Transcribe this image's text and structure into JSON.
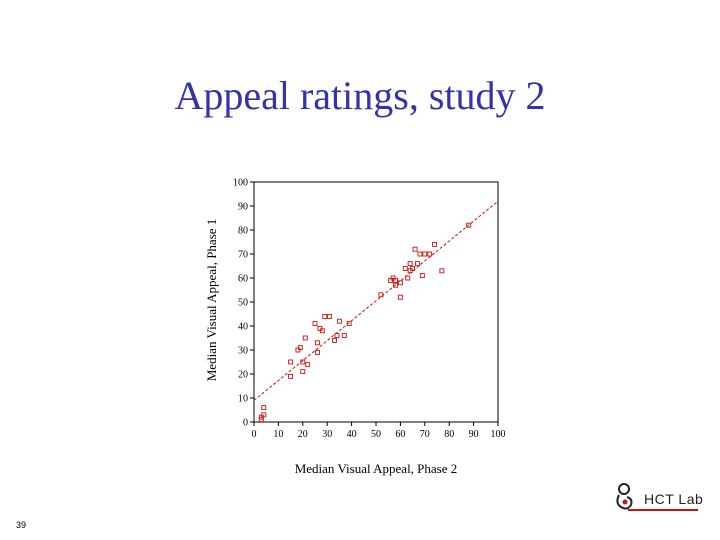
{
  "slide": {
    "title": "Appeal ratings, study 2",
    "page_number": "39",
    "logo_text": "HCT  Lab"
  },
  "chart_data": {
    "type": "scatter",
    "title": "",
    "xlabel": "Median Visual Appeal, Phase 2",
    "ylabel": "Median Visual Appeal, Phase 1",
    "xlim": [
      0,
      100
    ],
    "ylim": [
      0,
      100
    ],
    "xticks": [
      0,
      10,
      20,
      30,
      40,
      50,
      60,
      70,
      80,
      90,
      100
    ],
    "yticks": [
      0,
      10,
      20,
      30,
      40,
      50,
      60,
      70,
      80,
      90,
      100
    ],
    "grid": false,
    "point_color": "#cc1111",
    "fit_line": {
      "style": "dashed",
      "color": "#cc1111",
      "from": [
        0,
        9
      ],
      "to": [
        100,
        92
      ]
    },
    "points": [
      [
        3,
        1
      ],
      [
        3,
        2
      ],
      [
        4,
        3
      ],
      [
        4,
        6
      ],
      [
        15,
        19
      ],
      [
        15,
        25
      ],
      [
        18,
        30
      ],
      [
        19,
        31
      ],
      [
        20,
        21
      ],
      [
        20,
        25
      ],
      [
        21,
        35
      ],
      [
        22,
        24
      ],
      [
        25,
        41
      ],
      [
        26,
        29
      ],
      [
        26,
        33
      ],
      [
        27,
        39
      ],
      [
        28,
        38
      ],
      [
        29,
        44
      ],
      [
        31,
        44
      ],
      [
        33,
        34
      ],
      [
        34,
        36
      ],
      [
        35,
        42
      ],
      [
        37,
        36
      ],
      [
        39,
        41
      ],
      [
        52,
        53
      ],
      [
        56,
        59
      ],
      [
        57,
        60
      ],
      [
        58,
        57
      ],
      [
        58,
        59
      ],
      [
        60,
        52
      ],
      [
        60,
        58
      ],
      [
        62,
        64
      ],
      [
        63,
        60
      ],
      [
        64,
        63
      ],
      [
        64,
        66
      ],
      [
        65,
        64
      ],
      [
        66,
        72
      ],
      [
        67,
        66
      ],
      [
        68,
        70
      ],
      [
        69,
        61
      ],
      [
        70,
        70
      ],
      [
        72,
        70
      ],
      [
        74,
        74
      ],
      [
        77,
        63
      ],
      [
        88,
        82
      ]
    ]
  }
}
